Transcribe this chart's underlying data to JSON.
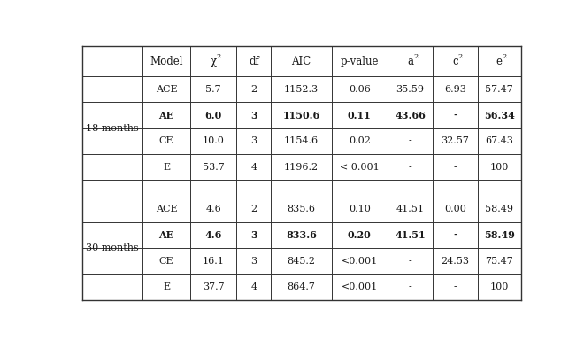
{
  "headers": [
    "Model",
    "df",
    "AIC",
    "p-value"
  ],
  "header_chi": "χ",
  "header_a2": "a",
  "header_c2": "c",
  "header_e2": "e",
  "section1_label": "18 months",
  "section2_label": "30 months",
  "rows_18": [
    [
      "ACE",
      "5.7",
      "2",
      "1152.3",
      "0.06",
      "35.59",
      "6.93",
      "57.47",
      false
    ],
    [
      "AE",
      "6.0",
      "3",
      "1150.6",
      "0.11",
      "43.66",
      "-",
      "56.34",
      true
    ],
    [
      "CE",
      "10.0",
      "3",
      "1154.6",
      "0.02",
      "-",
      "32.57",
      "67.43",
      false
    ],
    [
      "E",
      "53.7",
      "4",
      "1196.2",
      "< 0.001",
      "-",
      "-",
      "100",
      false
    ]
  ],
  "rows_30": [
    [
      "ACE",
      "4.6",
      "2",
      "835.6",
      "0.10",
      "41.51",
      "0.00",
      "58.49",
      false
    ],
    [
      "AE",
      "4.6",
      "3",
      "833.6",
      "0.20",
      "41.51",
      "-",
      "58.49",
      true
    ],
    [
      "CE",
      "16.1",
      "3",
      "845.2",
      "<0.001",
      "-",
      "24.53",
      "75.47",
      false
    ],
    [
      "E",
      "37.7",
      "4",
      "864.7",
      "<0.001",
      "-",
      "-",
      "100",
      false
    ]
  ],
  "bg_color": "#ffffff",
  "line_color": "#333333",
  "text_color": "#1a1a1a"
}
